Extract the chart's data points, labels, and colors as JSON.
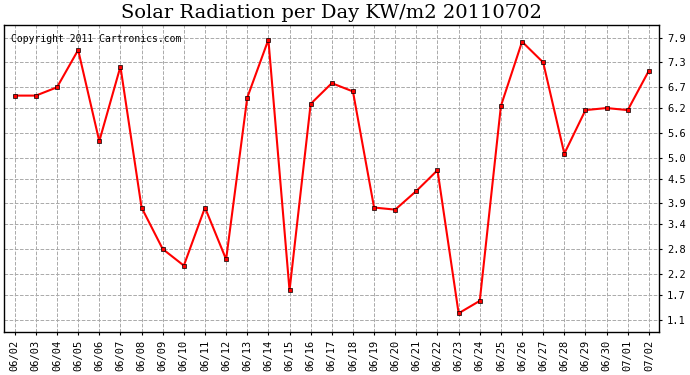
{
  "title": "Solar Radiation per Day KW/m2 20110702",
  "copyright_text": "Copyright 2011 Cartronics.com",
  "dates": [
    "06/02",
    "06/03",
    "06/04",
    "06/05",
    "06/06",
    "06/07",
    "06/08",
    "06/09",
    "06/10",
    "06/11",
    "06/12",
    "06/13",
    "06/14",
    "06/15",
    "06/16",
    "06/17",
    "06/18",
    "06/19",
    "06/20",
    "06/21",
    "06/22",
    "06/23",
    "06/24",
    "06/25",
    "06/26",
    "06/27",
    "06/28",
    "06/29",
    "06/30",
    "07/01",
    "07/02"
  ],
  "values": [
    6.5,
    6.5,
    6.7,
    7.6,
    5.4,
    7.2,
    3.8,
    2.8,
    2.4,
    3.8,
    2.55,
    6.45,
    7.85,
    1.8,
    6.3,
    6.8,
    6.6,
    3.8,
    3.75,
    4.2,
    4.7,
    1.25,
    1.55,
    6.25,
    7.8,
    7.3,
    5.1,
    6.15,
    6.2,
    6.15,
    7.1
  ],
  "line_color": "#ff0000",
  "marker": "s",
  "marker_size": 3,
  "line_width": 1.5,
  "bg_color": "#ffffff",
  "plot_bg_color": "#ffffff",
  "grid_color": "#aaaaaa",
  "grid_style": "--",
  "yticks": [
    1.1,
    1.7,
    2.2,
    2.8,
    3.4,
    3.9,
    4.5,
    5.0,
    5.6,
    6.2,
    6.7,
    7.3,
    7.9
  ],
  "ylim": [
    0.8,
    8.2
  ],
  "title_fontsize": 14,
  "tick_fontsize": 7.5,
  "copyright_fontsize": 7
}
